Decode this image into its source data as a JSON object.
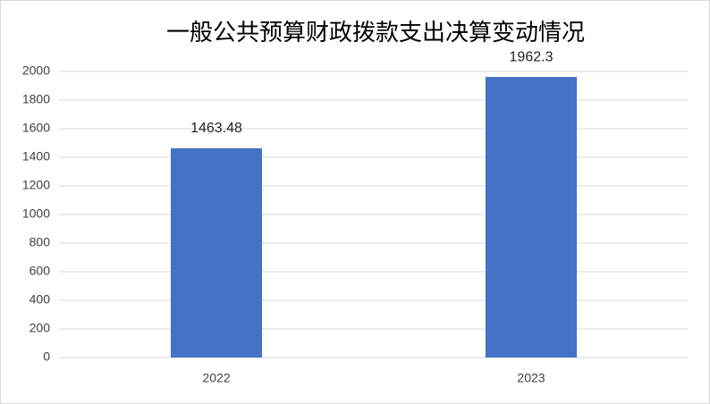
{
  "chart_data": {
    "type": "bar",
    "title": "一般公共预算财政拨款支出决算变动情况",
    "categories": [
      "2022",
      "2023"
    ],
    "values": [
      1463.48,
      1962.3
    ],
    "color": "#4472c4",
    "ylim": [
      0,
      2000
    ],
    "yticks": [
      0,
      200,
      400,
      600,
      800,
      1000,
      1200,
      1400,
      1600,
      1800,
      2000
    ],
    "grid": true
  }
}
